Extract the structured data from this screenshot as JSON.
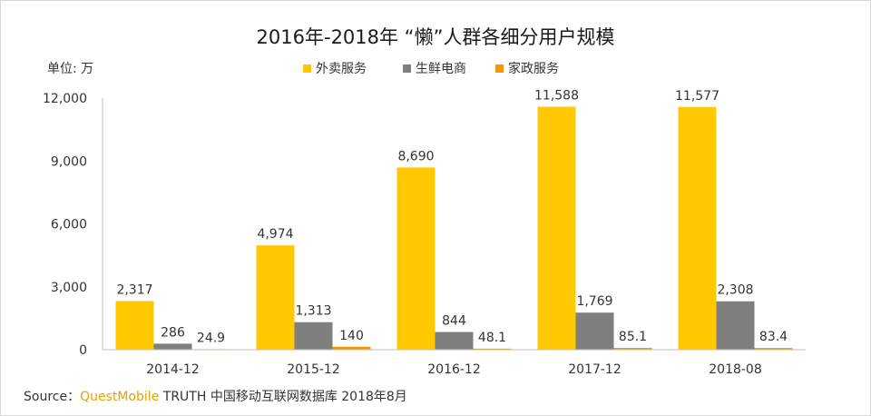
{
  "chart_data": {
    "type": "bar",
    "title": "2016年-2018年 “懒”人群各细分用户规模",
    "unit_label": "单位: 万",
    "categories": [
      "2014-12",
      "2015-12",
      "2016-12",
      "2017-12",
      "2018-08"
    ],
    "series": [
      {
        "name": "外卖服务",
        "color": "#ffc800",
        "values": [
          2317,
          4974,
          8690,
          11588,
          11577
        ],
        "labels": [
          "2,317",
          "4,974",
          "8,690",
          "11,588",
          "11,577"
        ]
      },
      {
        "name": "生鲜电商",
        "color": "#7f7f7f",
        "values": [
          286,
          1313,
          844,
          1769,
          2308
        ],
        "labels": [
          "286",
          "1,313",
          "844",
          "1,769",
          "2,308"
        ]
      },
      {
        "name": "家政服务",
        "color": "#f39800",
        "values": [
          24.9,
          140,
          48.1,
          85.1,
          83.4
        ],
        "labels": [
          "24.9",
          "140",
          "48.1",
          "85.1",
          "83.4"
        ]
      }
    ],
    "yticks": [
      0,
      3000,
      6000,
      9000,
      12000
    ],
    "ytick_labels": [
      "0",
      "3,000",
      "6,000",
      "9,000",
      "12,000"
    ],
    "ylim": [
      0,
      12000
    ],
    "legend_position": "top-center",
    "grid": false
  },
  "source": {
    "prefix": "Source：",
    "brand": "QuestMobile",
    "suffix": " TRUTH 中国移动互联网数据库 2018年8月"
  }
}
